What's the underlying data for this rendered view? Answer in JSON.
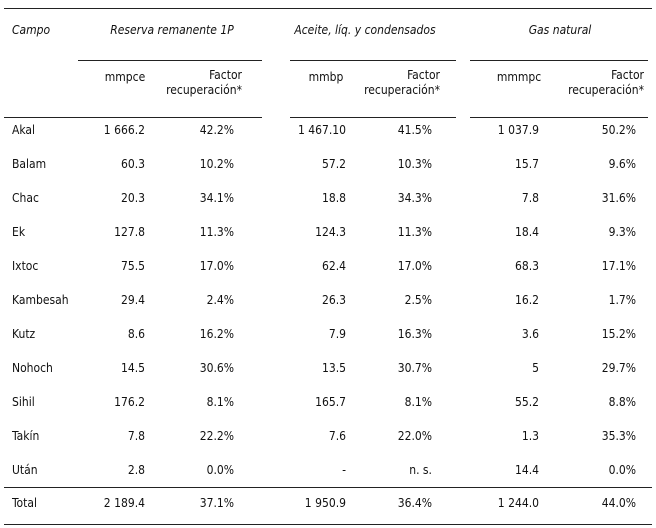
{
  "header": {
    "columns": [
      "Campo",
      "Reserva remanente 1P",
      "Aceite, líq. y condensados",
      "Gas natural"
    ],
    "subcolumns": [
      "mmpce",
      "Factor recuperación*",
      "mmbp",
      "Factor recuperación*",
      "mmmpc",
      "Factor recuperación*"
    ]
  },
  "table": {
    "rows": [
      [
        "Akal",
        "1 666.2",
        "42.2%",
        "1 467.10",
        "41.5%",
        "1 037.9",
        "50.2%"
      ],
      [
        "Balam",
        "60.3",
        "10.2%",
        "57.2",
        "10.3%",
        "15.7",
        "9.6%"
      ],
      [
        "Chac",
        "20.3",
        "34.1%",
        "18.8",
        "34.3%",
        "7.8",
        "31.6%"
      ],
      [
        "Ek",
        "127.8",
        "11.3%",
        "124.3",
        "11.3%",
        "18.4",
        "9.3%"
      ],
      [
        "Ixtoc",
        "75.5",
        "17.0%",
        "62.4",
        "17.0%",
        "68.3",
        "17.1%"
      ],
      [
        "Kambesah",
        "29.4",
        "2.4%",
        "26.3",
        "2.5%",
        "16.2",
        "1.7%"
      ],
      [
        "Kutz",
        "8.6",
        "16.2%",
        "7.9",
        "16.3%",
        "3.6",
        "15.2%"
      ],
      [
        "Nohoch",
        "14.5",
        "30.6%",
        "13.5",
        "30.7%",
        "5",
        "29.7%"
      ],
      [
        "Sihil",
        "176.2",
        "8.1%",
        "165.7",
        "8.1%",
        "55.2",
        "8.8%"
      ],
      [
        "Takín",
        "7.8",
        "22.2%",
        "7.6",
        "22.0%",
        "1.3",
        "35.3%"
      ],
      [
        "Után",
        "2.8",
        "0.0%",
        "-",
        "n. s.",
        "14.4",
        "0.0%"
      ]
    ],
    "total": [
      "Total",
      "2 189.4",
      "37.1%",
      "1 950.9",
      "36.4%",
      "1 244.0",
      "44.0%"
    ]
  }
}
